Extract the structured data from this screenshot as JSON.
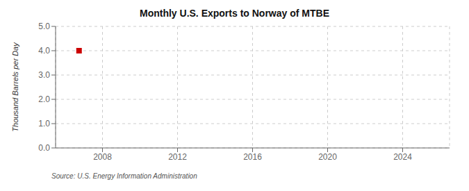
{
  "chart_data": {
    "type": "scatter",
    "title": "Monthly U.S. Exports to Norway of MTBE",
    "ylabel": "Thousand Barrels per Day",
    "annotations": [
      "Source: U.S. Energy Information Administration"
    ],
    "x": [
      2006.75
    ],
    "values": [
      4.0
    ],
    "color": "#cc0000",
    "marker": "square",
    "xlim": [
      2005.5,
      2026.5
    ],
    "xticks": [
      2008,
      2012,
      2016,
      2020,
      2024
    ],
    "ylim": [
      0.0,
      5.0
    ],
    "yticks": [
      {
        "value": 0.0,
        "label": "0.0"
      },
      {
        "value": 1.0,
        "label": "1.0"
      },
      {
        "value": 2.0,
        "label": "2.0"
      },
      {
        "value": 3.0,
        "label": "3.0"
      },
      {
        "value": 4.0,
        "label": "4.0"
      },
      {
        "value": 5.0,
        "label": "5.0"
      }
    ],
    "grid": true
  }
}
